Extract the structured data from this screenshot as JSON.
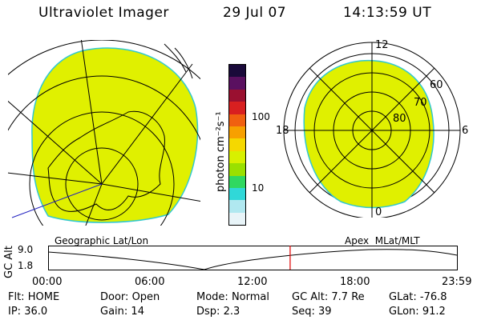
{
  "header": {
    "instrument": "Ultraviolet Imager",
    "date": "29 Jul 07",
    "time": "14:13:59 UT"
  },
  "polar_plot": {
    "mlt_labels": [
      "12",
      "18",
      "6",
      "0"
    ],
    "lat_labels": [
      "60",
      "70",
      "80"
    ]
  },
  "colorbar": {
    "unit_label": "photon cm⁻²s⁻¹",
    "ticks": [
      "100",
      "10"
    ],
    "colors": [
      "#1a0a3a",
      "#5a1060",
      "#9a1030",
      "#d82020",
      "#f06010",
      "#f7a000",
      "#f5d800",
      "#d8f000",
      "#9ae000",
      "#30d860",
      "#30d8d8",
      "#b0e8f0",
      "#e8f4f8"
    ]
  },
  "timeline": {
    "ylabel": "GC Alt",
    "y_ticks": [
      "9.0",
      "1.8"
    ],
    "left_title": "Geographic Lat/Lon",
    "right_title": "Apex  MLat/MLT",
    "x_ticks": [
      "00:00",
      "06:00",
      "12:00",
      "18:00",
      "23:59"
    ],
    "current_fraction": 0.592
  },
  "status": {
    "row1": [
      {
        "k": "Flt:",
        "v": "HOME"
      },
      {
        "k": "Door:",
        "v": "Open"
      },
      {
        "k": "Mode:",
        "v": "Normal"
      },
      {
        "k": "GC Alt:",
        "v": "7.7 Re"
      },
      {
        "k": "GLat:",
        "v": "-76.8"
      }
    ],
    "row2": [
      {
        "k": "IP:",
        "v": "36.0"
      },
      {
        "k": "Gain:",
        "v": "14"
      },
      {
        "k": "Dsp:",
        "v": "2.3"
      },
      {
        "k": "Seq:",
        "v": "39"
      },
      {
        "k": "GLon:",
        "v": "91.2"
      }
    ]
  }
}
